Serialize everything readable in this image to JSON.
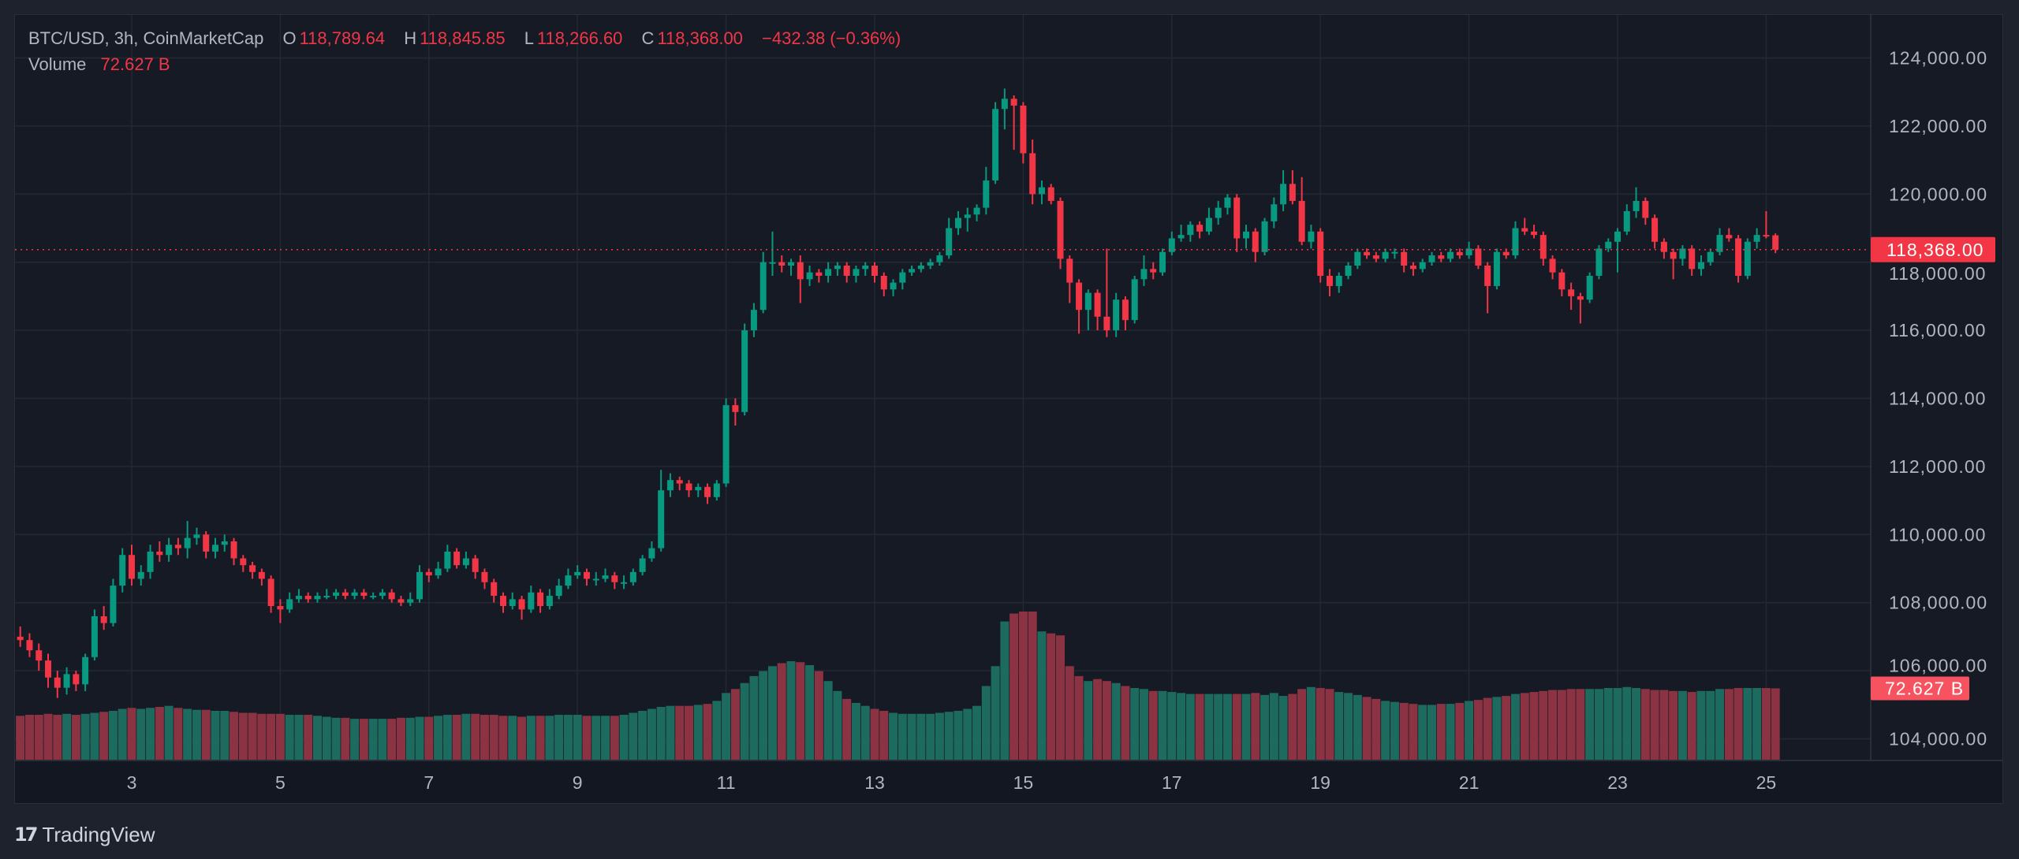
{
  "header": {
    "symbol": "BTC/USD, 3h, CoinMarketCap",
    "open_label": "O",
    "open": "118,789.64",
    "high_label": "H",
    "high": "118,845.85",
    "low_label": "L",
    "low": "118,266.60",
    "close_label": "C",
    "close": "118,368.00",
    "change": "−432.38 (−0.36%)",
    "volume_label": "Volume",
    "volume": "72.627 B"
  },
  "brand": {
    "logo_text": "TV",
    "name": "TradingView"
  },
  "colors": {
    "up": "#089981",
    "down": "#f23645",
    "up_volume": "#1d6b5f",
    "down_volume": "#8c3343",
    "background": "#161a25",
    "grid": "#242833",
    "text": "#b2b5be"
  },
  "chart_data": {
    "type": "candlestick",
    "title": "BTC/USD, 3h, CoinMarketCap",
    "xlabel": "",
    "ylabel": "",
    "ylim": [
      103500,
      125000
    ],
    "y_ticks": [
      "124,000.00",
      "122,000.00",
      "120,000.00",
      "118,000.00",
      "116,000.00",
      "114,000.00",
      "112,000.00",
      "110,000.00",
      "108,000.00",
      "106,000.00",
      "104,000.00"
    ],
    "y_tick_values": [
      124000,
      122000,
      120000,
      118000,
      116000,
      114000,
      112000,
      110000,
      108000,
      106000,
      104000
    ],
    "x_ticks": [
      "3",
      "5",
      "7",
      "9",
      "11",
      "13",
      "15",
      "17",
      "19",
      "21",
      "23",
      "25"
    ],
    "x_tick_days": [
      3,
      5,
      7,
      9,
      11,
      13,
      15,
      17,
      19,
      21,
      23,
      25
    ],
    "first_candle_day": 1.5,
    "candles_per_day": 8,
    "grid": true,
    "last_price_label": "118,368.00",
    "last_price": 118368,
    "last_volume_label": "72.627 B",
    "volume_unit": "B",
    "candle_fields": [
      "open",
      "high",
      "low",
      "close",
      "volume"
    ],
    "candles": [
      [
        107000,
        107300,
        106700,
        106900,
        45
      ],
      [
        106900,
        107100,
        106400,
        106600,
        46
      ],
      [
        106600,
        106800,
        106000,
        106300,
        46
      ],
      [
        106300,
        106500,
        105500,
        105800,
        47
      ],
      [
        105800,
        106000,
        105200,
        105500,
        46
      ],
      [
        105500,
        106100,
        105300,
        105900,
        47
      ],
      [
        105900,
        106000,
        105400,
        105600,
        46
      ],
      [
        105600,
        106500,
        105400,
        106400,
        47
      ],
      [
        106400,
        107800,
        106300,
        107600,
        48
      ],
      [
        107600,
        107900,
        107200,
        107400,
        49
      ],
      [
        107400,
        108700,
        107300,
        108500,
        50
      ],
      [
        108500,
        109600,
        108300,
        109400,
        52
      ],
      [
        109400,
        109700,
        108500,
        108700,
        53
      ],
      [
        108700,
        109100,
        108500,
        108900,
        52
      ],
      [
        108900,
        109700,
        108700,
        109500,
        53
      ],
      [
        109500,
        109800,
        109200,
        109400,
        54
      ],
      [
        109400,
        109900,
        109200,
        109700,
        55
      ],
      [
        109700,
        109900,
        109400,
        109600,
        53
      ],
      [
        109600,
        110400,
        109300,
        109900,
        52
      ],
      [
        109900,
        110200,
        109700,
        110000,
        51
      ],
      [
        110000,
        110100,
        109300,
        109500,
        51
      ],
      [
        109500,
        109900,
        109300,
        109700,
        50
      ],
      [
        109700,
        110000,
        109500,
        109800,
        50
      ],
      [
        109800,
        109900,
        109100,
        109300,
        49
      ],
      [
        109300,
        109400,
        108900,
        109100,
        48
      ],
      [
        109100,
        109200,
        108700,
        108900,
        48
      ],
      [
        108900,
        109000,
        108500,
        108700,
        47
      ],
      [
        108700,
        108800,
        107700,
        107900,
        47
      ],
      [
        107900,
        108100,
        107400,
        107800,
        47
      ],
      [
        107800,
        108300,
        107700,
        108100,
        46
      ],
      [
        108100,
        108400,
        108000,
        108200,
        46
      ],
      [
        108200,
        108300,
        108000,
        108100,
        46
      ],
      [
        108100,
        108300,
        108000,
        108200,
        45
      ],
      [
        108200,
        108400,
        108100,
        108200,
        44
      ],
      [
        108200,
        108400,
        108100,
        108300,
        43
      ],
      [
        108300,
        108400,
        108100,
        108200,
        43
      ],
      [
        108200,
        108400,
        108100,
        108300,
        42
      ],
      [
        108300,
        108400,
        108100,
        108200,
        42
      ],
      [
        108200,
        108300,
        108100,
        108200,
        42
      ],
      [
        108200,
        108400,
        108100,
        108300,
        42
      ],
      [
        108300,
        108400,
        108000,
        108100,
        42
      ],
      [
        108100,
        108200,
        107900,
        108000,
        43
      ],
      [
        108000,
        108300,
        107900,
        108100,
        43
      ],
      [
        108100,
        109100,
        108000,
        108900,
        44
      ],
      [
        108900,
        109000,
        108600,
        108800,
        44
      ],
      [
        108800,
        109200,
        108700,
        109000,
        45
      ],
      [
        109000,
        109700,
        108900,
        109500,
        46
      ],
      [
        109500,
        109600,
        109000,
        109100,
        46
      ],
      [
        109100,
        109500,
        109000,
        109300,
        47
      ],
      [
        109300,
        109400,
        108700,
        108900,
        47
      ],
      [
        108900,
        109000,
        108400,
        108600,
        46
      ],
      [
        108600,
        108700,
        108000,
        108200,
        46
      ],
      [
        108200,
        108300,
        107700,
        107900,
        45
      ],
      [
        107900,
        108300,
        107800,
        108100,
        45
      ],
      [
        108100,
        108200,
        107500,
        107800,
        44
      ],
      [
        107800,
        108500,
        107700,
        108300,
        45
      ],
      [
        108300,
        108400,
        107700,
        107900,
        45
      ],
      [
        107900,
        108400,
        107800,
        108200,
        45
      ],
      [
        108200,
        108700,
        108100,
        108500,
        46
      ],
      [
        108500,
        109000,
        108400,
        108800,
        46
      ],
      [
        108800,
        109100,
        108700,
        108900,
        46
      ],
      [
        108900,
        109000,
        108500,
        108700,
        45
      ],
      [
        108700,
        108900,
        108500,
        108700,
        45
      ],
      [
        108700,
        109000,
        108600,
        108800,
        45
      ],
      [
        108800,
        108900,
        108400,
        108600,
        45
      ],
      [
        108600,
        108800,
        108400,
        108600,
        46
      ],
      [
        108600,
        109000,
        108500,
        108900,
        48
      ],
      [
        108900,
        109400,
        108800,
        109300,
        50
      ],
      [
        109300,
        109800,
        109200,
        109600,
        52
      ],
      [
        109600,
        111900,
        109500,
        111300,
        54
      ],
      [
        111300,
        111800,
        111100,
        111600,
        55
      ],
      [
        111600,
        111700,
        111300,
        111500,
        55
      ],
      [
        111500,
        111600,
        111100,
        111300,
        55
      ],
      [
        111300,
        111500,
        111100,
        111400,
        56
      ],
      [
        111400,
        111500,
        110900,
        111100,
        57
      ],
      [
        111100,
        111600,
        111000,
        111500,
        60
      ],
      [
        111500,
        114000,
        111400,
        113800,
        68
      ],
      [
        113800,
        114000,
        113200,
        113600,
        72
      ],
      [
        113600,
        116200,
        113500,
        116000,
        78
      ],
      [
        116000,
        116800,
        115800,
        116600,
        85
      ],
      [
        116600,
        118300,
        116500,
        118000,
        90
      ],
      [
        118000,
        118900,
        117600,
        118000,
        95
      ],
      [
        118000,
        118200,
        117700,
        117900,
        98
      ],
      [
        117900,
        118100,
        117600,
        118000,
        100
      ],
      [
        118000,
        118200,
        116800,
        117500,
        99
      ],
      [
        117500,
        117900,
        117300,
        117700,
        96
      ],
      [
        117700,
        117800,
        117400,
        117600,
        90
      ],
      [
        117600,
        118000,
        117400,
        117800,
        80
      ],
      [
        117800,
        118000,
        117600,
        117900,
        70
      ],
      [
        117900,
        118000,
        117400,
        117600,
        62
      ],
      [
        117600,
        117900,
        117400,
        117800,
        58
      ],
      [
        117800,
        118000,
        117600,
        117900,
        55
      ],
      [
        117900,
        118000,
        117400,
        117600,
        52
      ],
      [
        117600,
        117700,
        117000,
        117200,
        50
      ],
      [
        117200,
        117500,
        117000,
        117400,
        48
      ],
      [
        117400,
        117800,
        117200,
        117700,
        47
      ],
      [
        117700,
        117900,
        117600,
        117800,
        47
      ],
      [
        117800,
        118000,
        117700,
        117900,
        47
      ],
      [
        117900,
        118100,
        117800,
        118000,
        47
      ],
      [
        118000,
        118300,
        117900,
        118200,
        48
      ],
      [
        118200,
        119300,
        118100,
        119000,
        49
      ],
      [
        119000,
        119500,
        118800,
        119300,
        50
      ],
      [
        119300,
        119600,
        118900,
        119400,
        52
      ],
      [
        119400,
        119700,
        119200,
        119600,
        55
      ],
      [
        119600,
        120800,
        119400,
        120400,
        75
      ],
      [
        120400,
        122700,
        120300,
        122500,
        95
      ],
      [
        122500,
        123100,
        121900,
        122800,
        140
      ],
      [
        122800,
        122900,
        121300,
        122600,
        148
      ],
      [
        122600,
        122700,
        120900,
        121200,
        150
      ],
      [
        121200,
        121600,
        119700,
        120000,
        150
      ],
      [
        120000,
        120400,
        119700,
        120200,
        130
      ],
      [
        120200,
        120300,
        119700,
        119800,
        128
      ],
      [
        119800,
        119900,
        117800,
        118100,
        126
      ],
      [
        118100,
        118200,
        116800,
        117400,
        95
      ],
      [
        117400,
        117500,
        115900,
        116600,
        85
      ],
      [
        116600,
        117200,
        116000,
        117100,
        80
      ],
      [
        117100,
        117200,
        116000,
        116400,
        82
      ],
      [
        116400,
        118400,
        115800,
        116000,
        80
      ],
      [
        116000,
        117100,
        115800,
        116900,
        78
      ],
      [
        116900,
        117000,
        116000,
        116300,
        75
      ],
      [
        116300,
        117600,
        116200,
        117500,
        73
      ],
      [
        117500,
        118200,
        117300,
        117800,
        72
      ],
      [
        117800,
        118000,
        117500,
        117700,
        70
      ],
      [
        117700,
        118400,
        117600,
        118300,
        70
      ],
      [
        118300,
        118900,
        118200,
        118700,
        69
      ],
      [
        118700,
        119100,
        118600,
        118800,
        68
      ],
      [
        118800,
        119200,
        118600,
        119100,
        67
      ],
      [
        119100,
        119200,
        118700,
        118900,
        67
      ],
      [
        118900,
        119600,
        118800,
        119300,
        67
      ],
      [
        119300,
        119800,
        119100,
        119600,
        67
      ],
      [
        119600,
        120000,
        119400,
        119900,
        67
      ],
      [
        119900,
        120000,
        118300,
        118700,
        67
      ],
      [
        118700,
        119100,
        118400,
        118900,
        67
      ],
      [
        118900,
        119000,
        118000,
        118300,
        68
      ],
      [
        118300,
        119300,
        118200,
        119200,
        66
      ],
      [
        119200,
        119900,
        119000,
        119700,
        68
      ],
      [
        119700,
        120700,
        119500,
        120300,
        65
      ],
      [
        120300,
        120700,
        119700,
        119800,
        67
      ],
      [
        119800,
        120500,
        118500,
        118600,
        72
      ],
      [
        118600,
        119100,
        118400,
        118900,
        74
      ],
      [
        118900,
        119000,
        117400,
        117600,
        73
      ],
      [
        117600,
        117800,
        117000,
        117300,
        72
      ],
      [
        117300,
        117700,
        117100,
        117600,
        69
      ],
      [
        117600,
        118000,
        117500,
        117900,
        68
      ],
      [
        117900,
        118400,
        117800,
        118300,
        66
      ],
      [
        118300,
        118400,
        118100,
        118200,
        64
      ],
      [
        118200,
        118300,
        118000,
        118100,
        62
      ],
      [
        118100,
        118400,
        118000,
        118300,
        60
      ],
      [
        118300,
        118400,
        118100,
        118300,
        59
      ],
      [
        118300,
        118400,
        117700,
        117900,
        58
      ],
      [
        117900,
        118000,
        117600,
        117800,
        57
      ],
      [
        117800,
        118100,
        117700,
        118000,
        56
      ],
      [
        118000,
        118300,
        117900,
        118200,
        56
      ],
      [
        118200,
        118300,
        118000,
        118100,
        57
      ],
      [
        118100,
        118400,
        118000,
        118300,
        57
      ],
      [
        118300,
        118400,
        118100,
        118200,
        58
      ],
      [
        118200,
        118600,
        118100,
        118400,
        60
      ],
      [
        118400,
        118500,
        117800,
        117900,
        61
      ],
      [
        117900,
        118000,
        116500,
        117300,
        63
      ],
      [
        117300,
        118400,
        117200,
        118300,
        64
      ],
      [
        118300,
        118400,
        118100,
        118200,
        65
      ],
      [
        118200,
        119200,
        118100,
        119000,
        67
      ],
      [
        119000,
        119300,
        118800,
        118900,
        68
      ],
      [
        118900,
        119100,
        118700,
        118800,
        69
      ],
      [
        118800,
        118900,
        117900,
        118100,
        70
      ],
      [
        118100,
        118200,
        117500,
        117700,
        71
      ],
      [
        117700,
        117800,
        117000,
        117200,
        71
      ],
      [
        117200,
        117400,
        116600,
        117000,
        72
      ],
      [
        117000,
        117100,
        116200,
        116900,
        72
      ],
      [
        116900,
        117700,
        116800,
        117600,
        72
      ],
      [
        117600,
        118500,
        117500,
        118400,
        72
      ],
      [
        118400,
        118700,
        118300,
        118600,
        73
      ],
      [
        118600,
        119000,
        117700,
        118900,
        73
      ],
      [
        118900,
        119700,
        118800,
        119500,
        74
      ],
      [
        119500,
        120200,
        119300,
        119800,
        73
      ],
      [
        119800,
        119900,
        119100,
        119300,
        72
      ],
      [
        119300,
        119400,
        118400,
        118600,
        71
      ],
      [
        118600,
        118700,
        118100,
        118300,
        71
      ],
      [
        118300,
        118400,
        117500,
        118100,
        70
      ],
      [
        118100,
        118500,
        117900,
        118400,
        70
      ],
      [
        118400,
        118500,
        117600,
        117800,
        69
      ],
      [
        117800,
        118200,
        117600,
        118000,
        70
      ],
      [
        118000,
        118400,
        117900,
        118300,
        70
      ],
      [
        118300,
        119000,
        118200,
        118800,
        72
      ],
      [
        118800,
        119000,
        118600,
        118700,
        72
      ],
      [
        118700,
        118800,
        117400,
        117600,
        73
      ],
      [
        117600,
        118700,
        117500,
        118600,
        73
      ],
      [
        118600,
        119000,
        118400,
        118800,
        73
      ],
      [
        118800,
        119500,
        118700,
        118789.64,
        73
      ],
      [
        118789.64,
        118845.85,
        118266.6,
        118368.0,
        72.627
      ]
    ]
  }
}
